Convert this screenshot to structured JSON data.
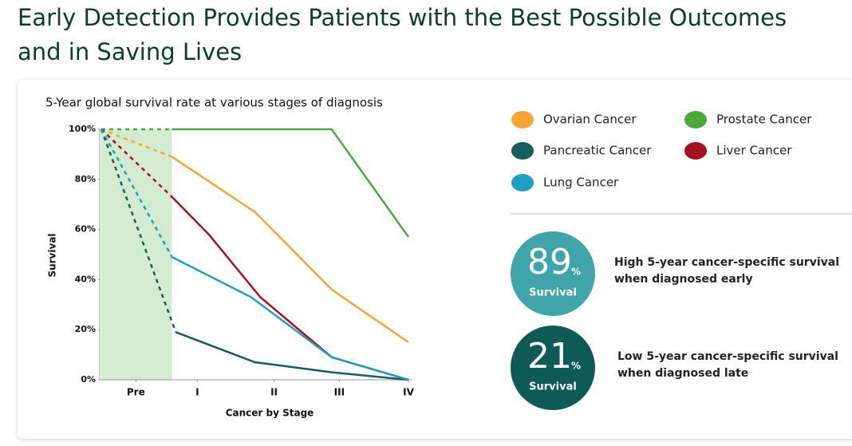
{
  "header": {
    "title_lines": [
      "Early Detection Provides Patients with the Best Possible Outcomes",
      "and in Saving Lives"
    ]
  },
  "chart_data": {
    "type": "line",
    "title": "5-Year global survival rate at various stages of diagnosis",
    "x_label": "Cancer by Stage",
    "y_label": "Survival",
    "xlim": [
      0,
      4
    ],
    "ylim": [
      0,
      100
    ],
    "xticks": [
      {
        "value": 0.45,
        "label": "Pre"
      },
      {
        "value": 1.25,
        "label": "I"
      },
      {
        "value": 2.25,
        "label": "II"
      },
      {
        "value": 3.1,
        "label": "III"
      },
      {
        "value": 4,
        "label": "IV"
      }
    ],
    "yticks": [
      {
        "value": 0,
        "label": "0%"
      },
      {
        "value": 20,
        "label": "20%"
      },
      {
        "value": 40,
        "label": "40%"
      },
      {
        "value": 60,
        "label": "60%"
      },
      {
        "value": 80,
        "label": "80%"
      },
      {
        "value": 100,
        "label": "100%"
      }
    ],
    "highlight_xlim": [
      0,
      0.92
    ],
    "highlight_color": "#d3ecd0",
    "series": [
      {
        "name": "Ovarian Cancer",
        "color": "#f5a533",
        "dash_to": 1,
        "x": [
          0,
          0.92,
          2,
          3,
          4
        ],
        "values": [
          100,
          89,
          67,
          36,
          15
        ]
      },
      {
        "name": "Prostate Cancer",
        "color": "#4aab3a",
        "dash_to": 1,
        "x": [
          0,
          0.92,
          3,
          4
        ],
        "values": [
          100,
          100,
          100,
          57
        ]
      },
      {
        "name": "Pancreatic Cancer",
        "color": "#155e5a",
        "dash_to": 1,
        "x": [
          0,
          0.97,
          2,
          3,
          4
        ],
        "values": [
          100,
          19,
          7,
          3,
          0
        ]
      },
      {
        "name": "Liver Cancer",
        "color": "#a3121e",
        "dash_to": 1,
        "x": [
          0,
          0.92,
          1.4,
          2.07,
          3,
          4
        ],
        "values": [
          100,
          73,
          58,
          33,
          9,
          0
        ]
      },
      {
        "name": "Lung Cancer",
        "color": "#1f9ec4",
        "dash_to": 1,
        "x": [
          0,
          0.92,
          1.95,
          3,
          4
        ],
        "values": [
          100,
          49,
          33,
          9,
          0
        ]
      }
    ]
  },
  "stats": [
    {
      "number": "89",
      "unit": "%",
      "caption": "Survival",
      "color": "#3fa5ab",
      "text_lines": [
        "High 5-year cancer-specific survival",
        "when diagnosed early"
      ]
    },
    {
      "number": "21",
      "unit": "%",
      "caption": "Survival",
      "color": "#0e5a57",
      "text_lines": [
        "Low 5-year cancer-specific survival",
        "when diagnosed late"
      ]
    }
  ]
}
